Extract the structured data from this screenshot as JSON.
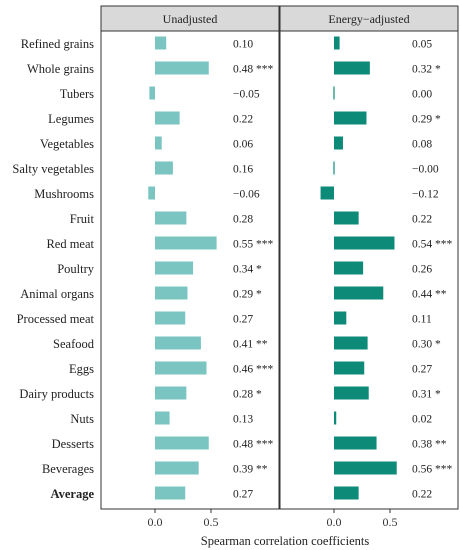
{
  "chart_data": {
    "type": "bar",
    "orientation": "horizontal",
    "xlabel": "Spearman correlation coefficients",
    "xticks": [
      "0.0",
      "0.5"
    ],
    "xtick_values": [
      0,
      0.5
    ],
    "xlim": [
      -0.22,
      0.6
    ],
    "categories": [
      "Refined grains",
      "Whole grains",
      "Tubers",
      "Legumes",
      "Vegetables",
      "Salty vegetables",
      "Mushrooms",
      "Fruit",
      "Red meat",
      "Poultry",
      "Animal organs",
      "Processed meat",
      "Seafood",
      "Eggs",
      "Dairy products",
      "Nuts",
      "Desserts",
      "Beverages",
      "Average"
    ],
    "bold_category": "Average",
    "panels": [
      {
        "name": "Unadjusted",
        "color": "#7ac5c2",
        "values": [
          0.1,
          0.48,
          -0.05,
          0.22,
          0.06,
          0.16,
          -0.06,
          0.28,
          0.55,
          0.34,
          0.29,
          0.27,
          0.41,
          0.46,
          0.28,
          0.13,
          0.48,
          0.39,
          0.27
        ],
        "labels": [
          "0.10",
          "0.48 ***",
          "−0.05",
          "0.22",
          "0.06",
          "0.16",
          "−0.06",
          "0.28",
          "0.55 ***",
          "0.34 *",
          "0.29 *",
          "0.27",
          "0.41 **",
          "0.46 ***",
          "0.28 *",
          "0.13",
          "0.48 ***",
          "0.39 **",
          "0.27"
        ]
      },
      {
        "name": "Energy−adjusted",
        "color": "#0e8a78",
        "values": [
          0.05,
          0.32,
          0.0,
          0.29,
          0.08,
          -0.0,
          -0.12,
          0.22,
          0.54,
          0.26,
          0.44,
          0.11,
          0.3,
          0.27,
          0.31,
          0.02,
          0.38,
          0.56,
          0.22
        ],
        "labels": [
          "0.05",
          "0.32 *",
          "0.00",
          "0.29 *",
          "0.08",
          "−0.00",
          "−0.12",
          "0.22",
          "0.54 ***",
          "0.26",
          "0.44 **",
          "0.11",
          "0.30 *",
          "0.27",
          "0.31 *",
          "0.02",
          "0.38 **",
          "0.56 ***",
          "0.22"
        ]
      }
    ],
    "panel_header_bg": "#d9d9d9",
    "grid": false
  }
}
